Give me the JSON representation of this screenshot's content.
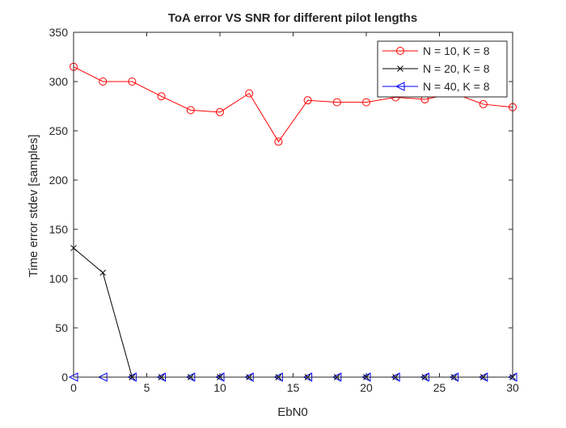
{
  "chart_data": {
    "type": "line",
    "title": "ToA error VS SNR for different pilot lengths",
    "xlabel": "EbN0",
    "ylabel": "Time error stdev [samples]",
    "xlim": [
      0,
      30
    ],
    "ylim": [
      0,
      350
    ],
    "xticks": [
      0,
      5,
      10,
      15,
      20,
      25,
      30
    ],
    "yticks": [
      0,
      50,
      100,
      150,
      200,
      250,
      300,
      350
    ],
    "grid": false,
    "legend_position": "top-right",
    "series": [
      {
        "name": "N = 10, K = 8",
        "color": "#ff0000",
        "marker": "circle",
        "x": [
          0,
          2,
          4,
          6,
          8,
          10,
          12,
          14,
          16,
          18,
          20,
          22,
          24,
          26,
          28,
          30
        ],
        "values": [
          315,
          300,
          300,
          285,
          271,
          269,
          288,
          239,
          281,
          279,
          279,
          284,
          282,
          288,
          277,
          274
        ]
      },
      {
        "name": "N = 20, K = 8",
        "color": "#000000",
        "marker": "x",
        "x": [
          0,
          2,
          4,
          6,
          8,
          10,
          12,
          14,
          16,
          18,
          20,
          22,
          24,
          26,
          28,
          30
        ],
        "values": [
          131,
          106,
          0,
          0,
          0,
          0,
          0,
          0,
          0,
          0,
          0,
          0,
          0,
          0,
          0,
          0
        ]
      },
      {
        "name": "N = 40, K = 8",
        "color": "#0000ff",
        "marker": "triangle-left",
        "x": [
          0,
          2,
          4,
          6,
          8,
          10,
          12,
          14,
          16,
          18,
          20,
          22,
          24,
          26,
          28,
          30
        ],
        "values": [
          0,
          0,
          0,
          0,
          0,
          0,
          0,
          0,
          0,
          0,
          0,
          0,
          0,
          0,
          0,
          0
        ]
      }
    ]
  }
}
